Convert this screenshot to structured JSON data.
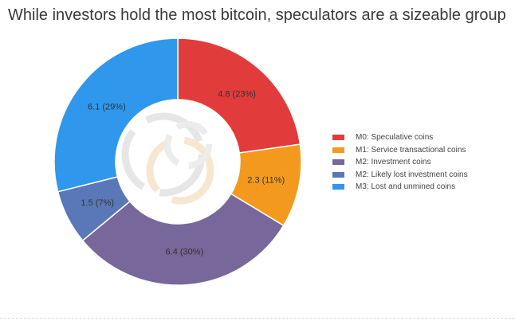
{
  "title": "While investors hold the most bitcoin, speculators are a sizeable group",
  "chart_data": {
    "type": "pie",
    "subtype": "donut",
    "slices": [
      {
        "name": "M0: Speculative coins",
        "value": 4.8,
        "percent": 23,
        "label": "4.8 (23%)",
        "color": "#e23b3b"
      },
      {
        "name": "M1: Service transactional coins",
        "value": 2.3,
        "percent": 11,
        "label": "2.3 (11%)",
        "color": "#f39a1e"
      },
      {
        "name": "M2: Investment coins",
        "value": 6.4,
        "percent": 30,
        "label": "6.4 (30%)",
        "color": "#77679a"
      },
      {
        "name": "M2: Likely lost investment coins",
        "value": 1.5,
        "percent": 7,
        "label": "1.5 (7%)",
        "color": "#5a78b8"
      },
      {
        "name": "M3: Lost and unmined coins",
        "value": 6.1,
        "percent": 29,
        "label": "6.1 (29%)",
        "color": "#2f97ec"
      }
    ],
    "legend_position": "right"
  },
  "center_logo": {
    "icon": "interlocking-rings-watermark-icon",
    "colors": [
      "#dcdcdc",
      "#f6e3c8"
    ]
  }
}
